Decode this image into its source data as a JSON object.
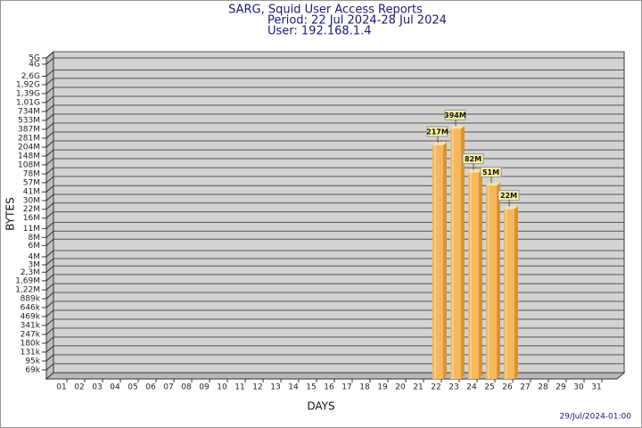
{
  "chart_data": {
    "type": "bar",
    "title": "SARG, Squid User Access Reports",
    "subtitle": [
      "Period: 22 Jul 2024-28 Jul 2024",
      "User: 192.168.1.4"
    ],
    "x_label": "DAYS",
    "y_label": "BYTES",
    "footer": "29/Jul/2024-01:00",
    "categories": [
      "01",
      "02",
      "03",
      "04",
      "05",
      "06",
      "07",
      "08",
      "09",
      "10",
      "11",
      "12",
      "13",
      "14",
      "15",
      "16",
      "17",
      "18",
      "19",
      "20",
      "21",
      "22",
      "23",
      "24",
      "25",
      "26",
      "27",
      "28",
      "29",
      "30",
      "31"
    ],
    "values": [
      null,
      null,
      null,
      null,
      null,
      null,
      null,
      null,
      null,
      null,
      null,
      null,
      null,
      null,
      null,
      null,
      null,
      null,
      null,
      null,
      null,
      217000000,
      394000000,
      82000000,
      51000000,
      22000000,
      null,
      null,
      null,
      null,
      null
    ],
    "value_labels": [
      null,
      null,
      null,
      null,
      null,
      null,
      null,
      null,
      null,
      null,
      null,
      null,
      null,
      null,
      null,
      null,
      null,
      null,
      null,
      null,
      null,
      "217M",
      "394M",
      "82M",
      "51M",
      "22M",
      null,
      null,
      null,
      null,
      null
    ],
    "color": "#f5b85c",
    "yscale": "log",
    "grid": true,
    "ylim": [
      50000,
      5000000000
    ],
    "yticks": [
      {
        "value": 5000000000,
        "label": "5G"
      },
      {
        "value": 4000000000,
        "label": "4G"
      },
      {
        "value": 2600000000,
        "label": "2,6G"
      },
      {
        "value": 1920000000,
        "label": "1,92G"
      },
      {
        "value": 1390000000,
        "label": "1,39G"
      },
      {
        "value": 1010000000,
        "label": "1,01G"
      },
      {
        "value": 734000000,
        "label": "734M"
      },
      {
        "value": 533000000,
        "label": "533M"
      },
      {
        "value": 387000000,
        "label": "387M"
      },
      {
        "value": 281000000,
        "label": "281M"
      },
      {
        "value": 204000000,
        "label": "204M"
      },
      {
        "value": 148000000,
        "label": "148M"
      },
      {
        "value": 108000000,
        "label": "108M"
      },
      {
        "value": 78000000,
        "label": "78M"
      },
      {
        "value": 57000000,
        "label": "57M"
      },
      {
        "value": 41000000,
        "label": "41M"
      },
      {
        "value": 30000000,
        "label": "30M"
      },
      {
        "value": 22000000,
        "label": "22M"
      },
      {
        "value": 16000000,
        "label": "16M"
      },
      {
        "value": 11000000,
        "label": "11M"
      },
      {
        "value": 8000000,
        "label": "8M"
      },
      {
        "value": 6000000,
        "label": "6M"
      },
      {
        "value": 4000000,
        "label": "4M"
      },
      {
        "value": 3000000,
        "label": "3M"
      },
      {
        "value": 2300000,
        "label": "2,3M"
      },
      {
        "value": 1690000,
        "label": "1,69M"
      },
      {
        "value": 1220000,
        "label": "1,22M"
      },
      {
        "value": 889000,
        "label": "889k"
      },
      {
        "value": 646000,
        "label": "646k"
      },
      {
        "value": 469000,
        "label": "469k"
      },
      {
        "value": 341000,
        "label": "341k"
      },
      {
        "value": 247000,
        "label": "247k"
      },
      {
        "value": 180000,
        "label": "180k"
      },
      {
        "value": 131000,
        "label": "131k"
      },
      {
        "value": 95000,
        "label": "95k"
      },
      {
        "value": 69000,
        "label": "69k"
      }
    ]
  }
}
